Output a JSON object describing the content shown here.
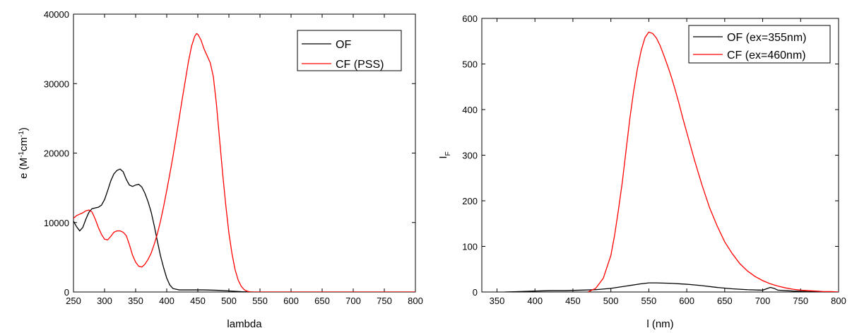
{
  "chart_data": [
    {
      "type": "line",
      "title": "",
      "xlabel": "lambda",
      "ylabel": "e (M-1cm-1)",
      "ylabel_parts": {
        "main": "e (M",
        "sup1": "-1",
        "mid": "cm",
        "sup2": "-1",
        "end": ")"
      },
      "xlim": [
        250,
        800
      ],
      "ylim": [
        0,
        40000
      ],
      "x_ticks": [
        250,
        300,
        350,
        400,
        450,
        500,
        550,
        600,
        650,
        700,
        750,
        800
      ],
      "y_ticks": [
        0,
        10000,
        20000,
        30000,
        40000
      ],
      "grid": false,
      "legend_position": "top-right",
      "series": [
        {
          "name": "OF",
          "color": "#000000",
          "points": [
            [
              250,
              10200
            ],
            [
              255,
              9400
            ],
            [
              260,
              8800
            ],
            [
              265,
              9300
            ],
            [
              270,
              10500
            ],
            [
              275,
              11500
            ],
            [
              280,
              12000
            ],
            [
              285,
              12100
            ],
            [
              290,
              12200
            ],
            [
              295,
              12500
            ],
            [
              300,
              13300
            ],
            [
              305,
              14600
            ],
            [
              310,
              16000
            ],
            [
              315,
              17000
            ],
            [
              320,
              17500
            ],
            [
              325,
              17700
            ],
            [
              330,
              17300
            ],
            [
              335,
              16200
            ],
            [
              340,
              15400
            ],
            [
              345,
              15200
            ],
            [
              350,
              15400
            ],
            [
              355,
              15500
            ],
            [
              360,
              15100
            ],
            [
              365,
              14200
            ],
            [
              370,
              13000
            ],
            [
              375,
              11500
            ],
            [
              380,
              9500
            ],
            [
              385,
              7300
            ],
            [
              390,
              5200
            ],
            [
              395,
              3500
            ],
            [
              400,
              2000
            ],
            [
              405,
              1000
            ],
            [
              410,
              500
            ],
            [
              420,
              300
            ],
            [
              440,
              300
            ],
            [
              460,
              300
            ],
            [
              480,
              250
            ],
            [
              500,
              150
            ],
            [
              520,
              50
            ],
            [
              540,
              0
            ],
            [
              600,
              0
            ],
            [
              700,
              0
            ],
            [
              800,
              0
            ]
          ]
        },
        {
          "name": "CF (PSS)",
          "color": "#ff0000",
          "points": [
            [
              250,
              10600
            ],
            [
              255,
              11000
            ],
            [
              260,
              11200
            ],
            [
              265,
              11400
            ],
            [
              270,
              11700
            ],
            [
              275,
              11800
            ],
            [
              280,
              11500
            ],
            [
              285,
              10500
            ],
            [
              290,
              9300
            ],
            [
              295,
              8300
            ],
            [
              300,
              7600
            ],
            [
              305,
              7500
            ],
            [
              310,
              8000
            ],
            [
              315,
              8600
            ],
            [
              320,
              8800
            ],
            [
              325,
              8800
            ],
            [
              330,
              8600
            ],
            [
              335,
              8100
            ],
            [
              340,
              6800
            ],
            [
              345,
              5300
            ],
            [
              350,
              4300
            ],
            [
              355,
              3700
            ],
            [
              360,
              3600
            ],
            [
              365,
              4000
            ],
            [
              370,
              4700
            ],
            [
              375,
              5600
            ],
            [
              380,
              6900
            ],
            [
              385,
              8400
            ],
            [
              390,
              10200
            ],
            [
              395,
              12300
            ],
            [
              400,
              14600
            ],
            [
              405,
              17000
            ],
            [
              410,
              19500
            ],
            [
              415,
              22200
            ],
            [
              420,
              25000
            ],
            [
              425,
              27800
            ],
            [
              430,
              30500
            ],
            [
              435,
              33200
            ],
            [
              440,
              35400
            ],
            [
              445,
              36800
            ],
            [
              448,
              37200
            ],
            [
              450,
              37100
            ],
            [
              455,
              36300
            ],
            [
              460,
              35000
            ],
            [
              465,
              34000
            ],
            [
              470,
              33000
            ],
            [
              475,
              31000
            ],
            [
              480,
              27000
            ],
            [
              485,
              22000
            ],
            [
              490,
              17000
            ],
            [
              495,
              12500
            ],
            [
              500,
              8500
            ],
            [
              505,
              5500
            ],
            [
              510,
              3200
            ],
            [
              515,
              1700
            ],
            [
              520,
              800
            ],
            [
              525,
              300
            ],
            [
              530,
              100
            ],
            [
              535,
              0
            ],
            [
              600,
              0
            ],
            [
              700,
              0
            ],
            [
              800,
              0
            ]
          ]
        }
      ]
    },
    {
      "type": "line",
      "title": "",
      "xlabel": "l  (nm)",
      "ylabel": "IF",
      "ylabel_parts": {
        "main": "I",
        "sub": "F"
      },
      "xlim": [
        330,
        800
      ],
      "ylim": [
        0,
        600
      ],
      "x_ticks": [
        350,
        400,
        450,
        500,
        550,
        600,
        650,
        700,
        750,
        800
      ],
      "y_ticks": [
        0,
        100,
        200,
        300,
        400,
        500,
        600
      ],
      "grid": false,
      "legend_position": "top-right",
      "series": [
        {
          "name": "OF (ex=355nm)",
          "color": "#000000",
          "points": [
            [
              360,
              0
            ],
            [
              380,
              1
            ],
            [
              400,
              2
            ],
            [
              420,
              3
            ],
            [
              440,
              3
            ],
            [
              460,
              4
            ],
            [
              480,
              5
            ],
            [
              500,
              8
            ],
            [
              520,
              13
            ],
            [
              540,
              18
            ],
            [
              550,
              20
            ],
            [
              560,
              20
            ],
            [
              580,
              19
            ],
            [
              600,
              17
            ],
            [
              620,
              14
            ],
            [
              640,
              10
            ],
            [
              660,
              7
            ],
            [
              680,
              5
            ],
            [
              700,
              4
            ],
            [
              705,
              7
            ],
            [
              710,
              10
            ],
            [
              715,
              8
            ],
            [
              720,
              4
            ],
            [
              740,
              2
            ],
            [
              760,
              1
            ],
            [
              780,
              0
            ],
            [
              800,
              0
            ]
          ]
        },
        {
          "name": "CF (ex=460nm)",
          "color": "#ff0000",
          "points": [
            [
              470,
              0
            ],
            [
              480,
              8
            ],
            [
              490,
              30
            ],
            [
              500,
              80
            ],
            [
              505,
              125
            ],
            [
              510,
              180
            ],
            [
              515,
              240
            ],
            [
              520,
              310
            ],
            [
              525,
              380
            ],
            [
              530,
              440
            ],
            [
              535,
              490
            ],
            [
              540,
              530
            ],
            [
              545,
              558
            ],
            [
              550,
              570
            ],
            [
              555,
              567
            ],
            [
              560,
              557
            ],
            [
              565,
              540
            ],
            [
              570,
              518
            ],
            [
              575,
              495
            ],
            [
              580,
              470
            ],
            [
              585,
              442
            ],
            [
              590,
              412
            ],
            [
              595,
              380
            ],
            [
              600,
              350
            ],
            [
              610,
              290
            ],
            [
              620,
              235
            ],
            [
              630,
              185
            ],
            [
              640,
              145
            ],
            [
              650,
              110
            ],
            [
              660,
              84
            ],
            [
              670,
              62
            ],
            [
              680,
              46
            ],
            [
              690,
              34
            ],
            [
              700,
              25
            ],
            [
              710,
              18
            ],
            [
              720,
              13
            ],
            [
              730,
              9
            ],
            [
              740,
              6
            ],
            [
              750,
              4
            ],
            [
              760,
              3
            ],
            [
              770,
              2
            ],
            [
              780,
              1
            ],
            [
              790,
              1
            ],
            [
              800,
              0
            ]
          ]
        }
      ]
    }
  ]
}
